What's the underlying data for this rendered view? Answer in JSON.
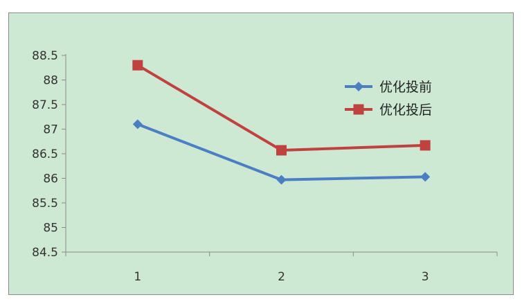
{
  "chart_data": {
    "type": "line",
    "categories": [
      "1",
      "2",
      "3"
    ],
    "series": [
      {
        "name": "优化投前",
        "values": [
          87.1,
          85.97,
          86.03
        ],
        "color": "#4a7fc4",
        "marker": "diamond"
      },
      {
        "name": "优化投后",
        "values": [
          88.3,
          86.57,
          86.67
        ],
        "color": "#c0423f",
        "marker": "square"
      }
    ],
    "yticks": [
      "84.5",
      "85",
      "85.5",
      "86",
      "86.5",
      "87",
      "87.5",
      "88",
      "88.5"
    ],
    "ylim": [
      84.5,
      88.5
    ],
    "grid": false,
    "legend_position": "right",
    "plot_background": "#cde8d3",
    "border_color": "#8a8a8a"
  }
}
